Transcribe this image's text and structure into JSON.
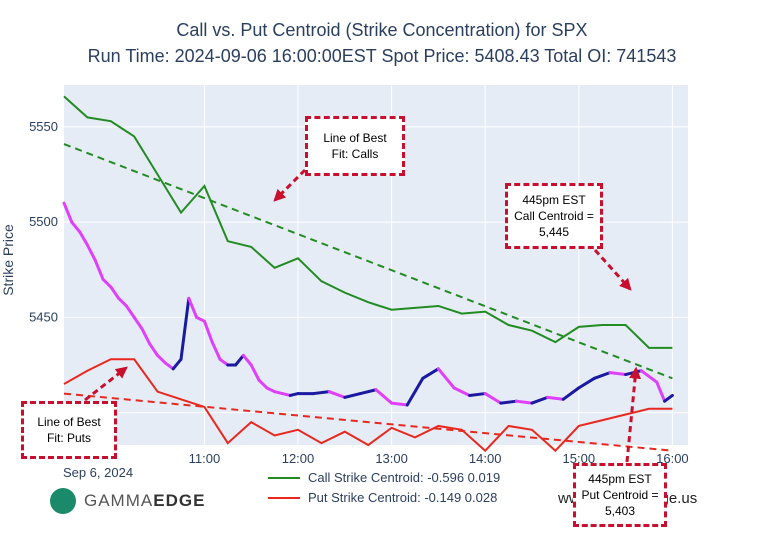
{
  "chart_data": {
    "type": "line",
    "title": "Call vs. Put Centroid (Strike Concentration) for SPX",
    "subtitle": "Run Time: 2024-09-06 16:00:00EST Spot Price: 5408.43 Total OI: 741543",
    "ylabel": "Strike Price",
    "xlabel": "",
    "ylim": [
      5383,
      5572
    ],
    "xlim": [
      "2024-09-06 09:30",
      "2024-09-06 16:10"
    ],
    "x_ticks": [
      "11:00",
      "12:00",
      "13:00",
      "14:00",
      "15:00",
      "16:00"
    ],
    "x_date_label": "Sep 6, 2024",
    "y_ticks": [
      5400,
      5450,
      5500,
      5550
    ],
    "grid": true,
    "plot_bg": "#e5ecf6",
    "series": [
      {
        "name": "Call Strike Centroid: -0.596 0.019",
        "color": "#228B22",
        "x": [
          "09:30",
          "09:45",
          "10:00",
          "10:15",
          "10:30",
          "10:45",
          "11:00",
          "11:15",
          "11:30",
          "11:45",
          "12:00",
          "12:15",
          "12:30",
          "12:45",
          "13:00",
          "13:15",
          "13:30",
          "13:45",
          "14:00",
          "14:15",
          "14:30",
          "14:45",
          "15:00",
          "15:15",
          "15:30",
          "15:45",
          "16:00"
        ],
        "values": [
          5566,
          5555,
          5553,
          5545,
          5525,
          5505,
          5519,
          5490,
          5487,
          5476,
          5481,
          5469,
          5463,
          5458,
          5454,
          5455,
          5456,
          5452,
          5453,
          5446,
          5443,
          5437,
          5445,
          5446,
          5446,
          5434,
          5434
        ]
      },
      {
        "name": "Put Strike Centroid: -0.149 0.028",
        "color": "#e8281e",
        "x": [
          "09:30",
          "09:45",
          "10:00",
          "10:15",
          "10:30",
          "10:45",
          "11:00",
          "11:15",
          "11:30",
          "11:45",
          "12:00",
          "12:15",
          "12:30",
          "12:45",
          "13:00",
          "13:15",
          "13:30",
          "13:45",
          "14:00",
          "14:15",
          "14:30",
          "14:45",
          "15:00",
          "15:15",
          "15:30",
          "15:45",
          "16:00"
        ],
        "values": [
          5415,
          5422,
          5428,
          5428,
          5411,
          5407,
          5403,
          5384,
          5395,
          5388,
          5391,
          5384,
          5390,
          5383,
          5392,
          5387,
          5393,
          5391,
          5380,
          5393,
          5391,
          5380,
          5393,
          5396,
          5399,
          5402,
          5402
        ]
      },
      {
        "type": "dashed",
        "color": "#228B22",
        "x": [
          "09:30",
          "16:00"
        ],
        "values": [
          5541,
          5418
        ]
      },
      {
        "type": "dashed",
        "color": "#e8281e",
        "x": [
          "09:30",
          "16:00"
        ],
        "values": [
          5410,
          5380
        ]
      },
      {
        "type": "price",
        "color_up": "#1a1aa0",
        "color_down": "#e040fb",
        "x": [
          "09:30",
          "09:35",
          "09:40",
          "09:45",
          "09:50",
          "09:55",
          "10:00",
          "10:05",
          "10:10",
          "10:15",
          "10:20",
          "10:25",
          "10:30",
          "10:35",
          "10:40",
          "10:45",
          "10:50",
          "10:55",
          "11:00",
          "11:05",
          "11:10",
          "11:15",
          "11:20",
          "11:25",
          "11:30",
          "11:35",
          "11:40",
          "11:45",
          "11:50",
          "11:55",
          "12:00",
          "12:10",
          "12:20",
          "12:30",
          "12:40",
          "12:50",
          "13:00",
          "13:10",
          "13:20",
          "13:30",
          "13:40",
          "13:50",
          "14:00",
          "14:10",
          "14:20",
          "14:30",
          "14:40",
          "14:50",
          "15:00",
          "15:10",
          "15:20",
          "15:30",
          "15:40",
          "15:50",
          "15:55",
          "16:00"
        ],
        "values": [
          5510,
          5500,
          5495,
          5488,
          5480,
          5470,
          5466,
          5460,
          5456,
          5450,
          5444,
          5436,
          5430,
          5426,
          5423,
          5428,
          5460,
          5450,
          5448,
          5437,
          5428,
          5425,
          5425,
          5430,
          5425,
          5417,
          5413,
          5411,
          5410,
          5409,
          5410,
          5410,
          5411,
          5408,
          5410,
          5412,
          5405,
          5404,
          5418,
          5423,
          5413,
          5409,
          5410,
          5405,
          5406,
          5405,
          5408,
          5407,
          5413,
          5418,
          5421,
          5420,
          5422,
          5416,
          5406,
          5409
        ]
      }
    ],
    "annotations": [
      {
        "text": "Line of Best\nFit: Calls"
      },
      {
        "text": "445pm EST\nCall Centroid =\n5,445"
      },
      {
        "text": "Line of Best\nFit: Puts"
      },
      {
        "text": "445pm EST\nPut Centroid =\n5,403"
      }
    ]
  },
  "branding": {
    "logo_left": "GAMMA",
    "logo_right": "EDGE",
    "watermark": "www.gammaedge.us"
  },
  "colors": {
    "accent": "#c8102e",
    "logo": "#1b8a6b"
  }
}
